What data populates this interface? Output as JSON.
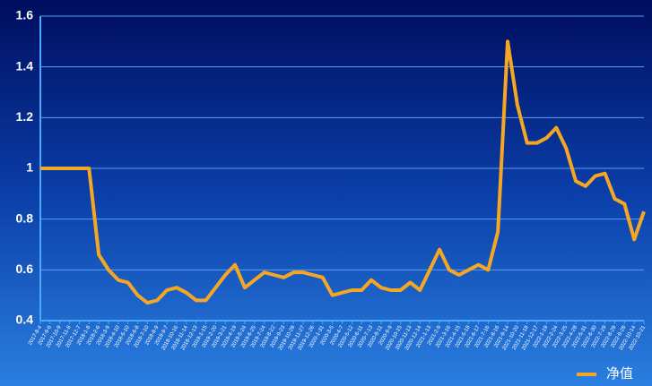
{
  "chart_data": {
    "type": "line",
    "categories": [
      "2017-8-4",
      "2017-9-6",
      "2017-10-9",
      "2017-11-8",
      "2017-12-7",
      "2018-1-8",
      "2018-2-6",
      "2018-3-9",
      "2018-4-10",
      "2018-5-10",
      "2018-6-8",
      "2018-7-10",
      "2018-8-9",
      "2018-9-7",
      "2018-10-16",
      "2018-11-14",
      "2018-12-13",
      "2019-1-15",
      "2019-2-20",
      "2019-3-21",
      "2019-4-19",
      "2019-5-24",
      "2019-6-25",
      "2019-7-24",
      "2019-8-22",
      "2019-9-23",
      "2019-10-29",
      "2019-11-27",
      "2019-12-26",
      "2020-1-31",
      "2020-3-5",
      "2020-4-7",
      "2020-5-12",
      "2020-6-11",
      "2020-7-13",
      "2020-8-11",
      "2020-9-9",
      "2020-10-15",
      "2020-11-13",
      "2020-12-14",
      "2021-1-13",
      "2021-2-9",
      "2021-3-16",
      "2021-4-15",
      "2021-5-18",
      "2021-6-17",
      "2021-7-16",
      "2021-8-16",
      "2021-9-14",
      "2021-10-20",
      "2021-11-18",
      "2021-12-17",
      "2022-1-19",
      "2022-2-24",
      "2022-3-25",
      "2022-4-28",
      "2022-5-31",
      "2022-6-30",
      "2022-7-29",
      "2022-8-29",
      "2022-9-28",
      "2022-10-14",
      "2022-10-21"
    ],
    "series": [
      {
        "name": "净值",
        "color": "#f5a623",
        "values": [
          1.0,
          1.0,
          1.0,
          1.0,
          1.0,
          1.0,
          0.66,
          0.6,
          0.56,
          0.55,
          0.5,
          0.47,
          0.48,
          0.52,
          0.53,
          0.51,
          0.48,
          0.48,
          0.53,
          0.58,
          0.62,
          0.53,
          0.56,
          0.59,
          0.58,
          0.57,
          0.59,
          0.59,
          0.58,
          0.57,
          0.5,
          0.51,
          0.52,
          0.52,
          0.56,
          0.53,
          0.52,
          0.52,
          0.55,
          0.52,
          0.6,
          0.68,
          0.6,
          0.58,
          0.6,
          0.62,
          0.6,
          0.75,
          1.5,
          1.25,
          1.1,
          1.1,
          1.12,
          1.16,
          1.08,
          0.95,
          0.93,
          0.97,
          0.98,
          0.88,
          0.86,
          0.72,
          0.83
        ]
      }
    ],
    "ylim": [
      0.4,
      1.6
    ],
    "yticks": [
      0.4,
      0.6,
      0.8,
      {
        "value": 1,
        "label": "1"
      },
      1.2,
      1.4,
      1.6
    ],
    "grid": true,
    "legend": "bottom-right"
  }
}
